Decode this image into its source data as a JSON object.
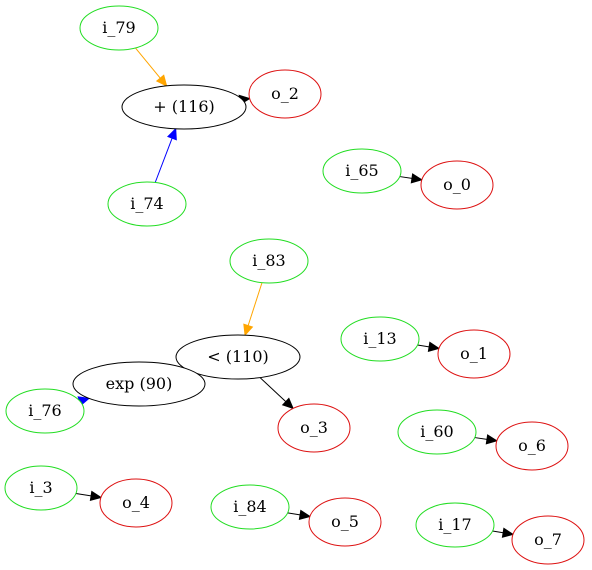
{
  "colors": {
    "input_stroke": "#22dd22",
    "output_stroke": "#dd1111",
    "op_stroke": "#000000",
    "edge_default": "#000000",
    "edge_orange": "#ffa500",
    "edge_blue": "#0000ff"
  },
  "nodes": [
    {
      "id": "i_79",
      "label": "i_79",
      "kind": "input"
    },
    {
      "id": "plus116",
      "label": "+ (116)",
      "kind": "op"
    },
    {
      "id": "o_2",
      "label": "o_2",
      "kind": "output"
    },
    {
      "id": "i_74",
      "label": "i_74",
      "kind": "input"
    },
    {
      "id": "i_65",
      "label": "i_65",
      "kind": "input"
    },
    {
      "id": "o_0",
      "label": "o_0",
      "kind": "output"
    },
    {
      "id": "i_83",
      "label": "i_83",
      "kind": "input"
    },
    {
      "id": "lt110",
      "label": "< (110)",
      "kind": "op"
    },
    {
      "id": "exp90",
      "label": "exp (90)",
      "kind": "op"
    },
    {
      "id": "i_76",
      "label": "i_76",
      "kind": "input"
    },
    {
      "id": "o_3",
      "label": "o_3",
      "kind": "output"
    },
    {
      "id": "i_13",
      "label": "i_13",
      "kind": "input"
    },
    {
      "id": "o_1",
      "label": "o_1",
      "kind": "output"
    },
    {
      "id": "i_60",
      "label": "i_60",
      "kind": "input"
    },
    {
      "id": "o_6",
      "label": "o_6",
      "kind": "output"
    },
    {
      "id": "i_3",
      "label": "i_3",
      "kind": "input"
    },
    {
      "id": "o_4",
      "label": "o_4",
      "kind": "output"
    },
    {
      "id": "i_84",
      "label": "i_84",
      "kind": "input"
    },
    {
      "id": "o_5",
      "label": "o_5",
      "kind": "output"
    },
    {
      "id": "i_17",
      "label": "i_17",
      "kind": "input"
    },
    {
      "id": "o_7",
      "label": "o_7",
      "kind": "output"
    }
  ],
  "edges": [
    {
      "from": "i_79",
      "to": "plus116",
      "color": "orange"
    },
    {
      "from": "i_74",
      "to": "plus116",
      "color": "blue"
    },
    {
      "from": "plus116",
      "to": "o_2",
      "color": "default"
    },
    {
      "from": "i_65",
      "to": "o_0",
      "color": "default"
    },
    {
      "from": "i_83",
      "to": "lt110",
      "color": "orange"
    },
    {
      "from": "exp90",
      "to": "lt110",
      "color": "blue"
    },
    {
      "from": "i_76",
      "to": "exp90",
      "color": "blue"
    },
    {
      "from": "lt110",
      "to": "o_3",
      "color": "default"
    },
    {
      "from": "i_13",
      "to": "o_1",
      "color": "default"
    },
    {
      "from": "i_60",
      "to": "o_6",
      "color": "default"
    },
    {
      "from": "i_3",
      "to": "o_4",
      "color": "default"
    },
    {
      "from": "i_84",
      "to": "o_5",
      "color": "default"
    },
    {
      "from": "i_17",
      "to": "o_7",
      "color": "default"
    }
  ]
}
